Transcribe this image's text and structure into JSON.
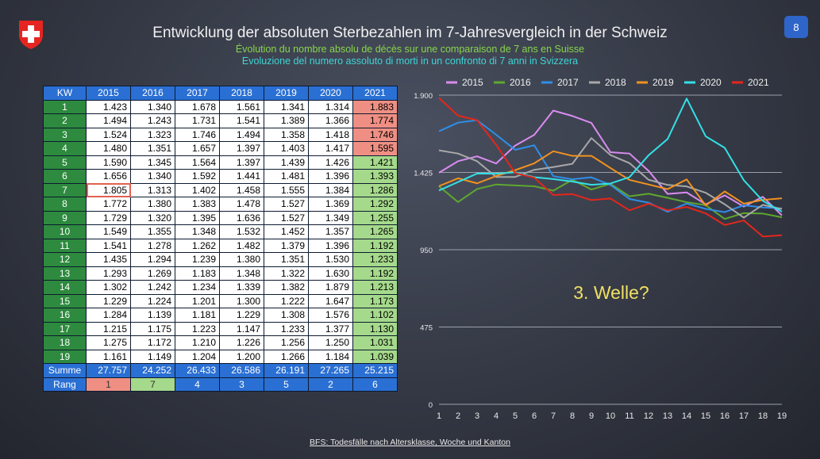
{
  "page_number": "8",
  "title": "Entwicklung der absoluten Sterbezahlen im 7-Jahresvergleich in der Schweiz",
  "subtitle_fr": "Évolution du nombre absolu de décès sur une comparaison de 7 ans en Suisse",
  "subtitle_it": "Evoluzione del numero assoluto di morti in un confronto di 7 anni in Svizzera",
  "annotation": "3. Welle?",
  "source": "BFS: Todesfälle nach Altersklasse, Woche und Kanton",
  "table": {
    "header": [
      "KW",
      "2015",
      "2016",
      "2017",
      "2018",
      "2019",
      "2020",
      "2021"
    ],
    "rows": [
      [
        "1",
        "1.423",
        "1.340",
        "1.678",
        "1.561",
        "1.341",
        "1.314",
        "1.883"
      ],
      [
        "2",
        "1.494",
        "1.243",
        "1.731",
        "1.541",
        "1.389",
        "1.366",
        "1.774"
      ],
      [
        "3",
        "1.524",
        "1.323",
        "1.746",
        "1.494",
        "1.358",
        "1.418",
        "1.746"
      ],
      [
        "4",
        "1.480",
        "1.351",
        "1.657",
        "1.397",
        "1.403",
        "1.417",
        "1.595"
      ],
      [
        "5",
        "1.590",
        "1.345",
        "1.564",
        "1.397",
        "1.439",
        "1.426",
        "1.421"
      ],
      [
        "6",
        "1.656",
        "1.340",
        "1.592",
        "1.441",
        "1.481",
        "1.396",
        "1.393"
      ],
      [
        "7",
        "1.805",
        "1.313",
        "1.402",
        "1.458",
        "1.555",
        "1.384",
        "1.286"
      ],
      [
        "8",
        "1.772",
        "1.380",
        "1.383",
        "1.478",
        "1.527",
        "1.369",
        "1.292"
      ],
      [
        "9",
        "1.729",
        "1.320",
        "1.395",
        "1.636",
        "1.527",
        "1.349",
        "1.255"
      ],
      [
        "10",
        "1.549",
        "1.355",
        "1.348",
        "1.532",
        "1.452",
        "1.357",
        "1.265"
      ],
      [
        "11",
        "1.541",
        "1.278",
        "1.262",
        "1.482",
        "1.379",
        "1.396",
        "1.192"
      ],
      [
        "12",
        "1.435",
        "1.294",
        "1.239",
        "1.380",
        "1.351",
        "1.530",
        "1.233"
      ],
      [
        "13",
        "1.293",
        "1.269",
        "1.183",
        "1.348",
        "1.322",
        "1.630",
        "1.192"
      ],
      [
        "14",
        "1.302",
        "1.242",
        "1.234",
        "1.339",
        "1.382",
        "1.879",
        "1.213"
      ],
      [
        "15",
        "1.229",
        "1.224",
        "1.201",
        "1.300",
        "1.222",
        "1.647",
        "1.173"
      ],
      [
        "16",
        "1.284",
        "1.139",
        "1.181",
        "1.229",
        "1.308",
        "1.576",
        "1.102"
      ],
      [
        "17",
        "1.215",
        "1.175",
        "1.223",
        "1.147",
        "1.233",
        "1.377",
        "1.130"
      ],
      [
        "18",
        "1.275",
        "1.172",
        "1.210",
        "1.226",
        "1.256",
        "1.250",
        "1.031"
      ],
      [
        "19",
        "1.161",
        "1.149",
        "1.204",
        "1.200",
        "1.266",
        "1.184",
        "1.039"
      ]
    ],
    "sum_label": "Summe",
    "sums": [
      "27.757",
      "24.252",
      "26.433",
      "26.586",
      "26.191",
      "27.265",
      "25.215"
    ],
    "rank_label": "Rang",
    "ranks": [
      "1",
      "7",
      "4",
      "3",
      "5",
      "2",
      "6"
    ]
  },
  "chart_data": {
    "type": "line",
    "x": [
      1,
      2,
      3,
      4,
      5,
      6,
      7,
      8,
      9,
      10,
      11,
      12,
      13,
      14,
      15,
      16,
      17,
      18,
      19
    ],
    "ylim": [
      0,
      1900
    ],
    "yticks": [
      0,
      475,
      950,
      1425,
      1900
    ],
    "ytick_labels": [
      "0",
      "475",
      "950",
      "1.425",
      "1.900"
    ],
    "grid": true,
    "legend_position": "top",
    "series": [
      {
        "name": "2015",
        "color": "#d98cf0",
        "values": [
          1423,
          1494,
          1524,
          1480,
          1590,
          1656,
          1805,
          1772,
          1729,
          1549,
          1541,
          1435,
          1293,
          1302,
          1229,
          1284,
          1215,
          1275,
          1161
        ]
      },
      {
        "name": "2016",
        "color": "#5ea82e",
        "values": [
          1340,
          1243,
          1323,
          1351,
          1345,
          1340,
          1313,
          1380,
          1320,
          1355,
          1278,
          1294,
          1269,
          1242,
          1224,
          1139,
          1175,
          1172,
          1149
        ]
      },
      {
        "name": "2017",
        "color": "#2f8ee8",
        "values": [
          1678,
          1731,
          1746,
          1657,
          1564,
          1592,
          1402,
          1383,
          1395,
          1348,
          1262,
          1239,
          1183,
          1234,
          1201,
          1181,
          1223,
          1210,
          1204
        ]
      },
      {
        "name": "2018",
        "color": "#a8a8a8",
        "values": [
          1561,
          1541,
          1494,
          1397,
          1397,
          1441,
          1458,
          1478,
          1636,
          1532,
          1482,
          1380,
          1348,
          1339,
          1300,
          1229,
          1147,
          1226,
          1200
        ]
      },
      {
        "name": "2019",
        "color": "#f2921e",
        "values": [
          1341,
          1389,
          1358,
          1403,
          1439,
          1481,
          1555,
          1527,
          1527,
          1452,
          1379,
          1351,
          1322,
          1382,
          1222,
          1308,
          1233,
          1256,
          1266
        ]
      },
      {
        "name": "2020",
        "color": "#33e0e6",
        "values": [
          1314,
          1366,
          1418,
          1417,
          1426,
          1396,
          1384,
          1369,
          1349,
          1357,
          1396,
          1530,
          1630,
          1879,
          1647,
          1576,
          1377,
          1250,
          1184
        ]
      },
      {
        "name": "2021",
        "color": "#e4261c",
        "values": [
          1883,
          1774,
          1746,
          1595,
          1421,
          1393,
          1286,
          1292,
          1255,
          1265,
          1192,
          1233,
          1192,
          1213,
          1173,
          1102,
          1130,
          1031,
          1039
        ]
      }
    ]
  }
}
